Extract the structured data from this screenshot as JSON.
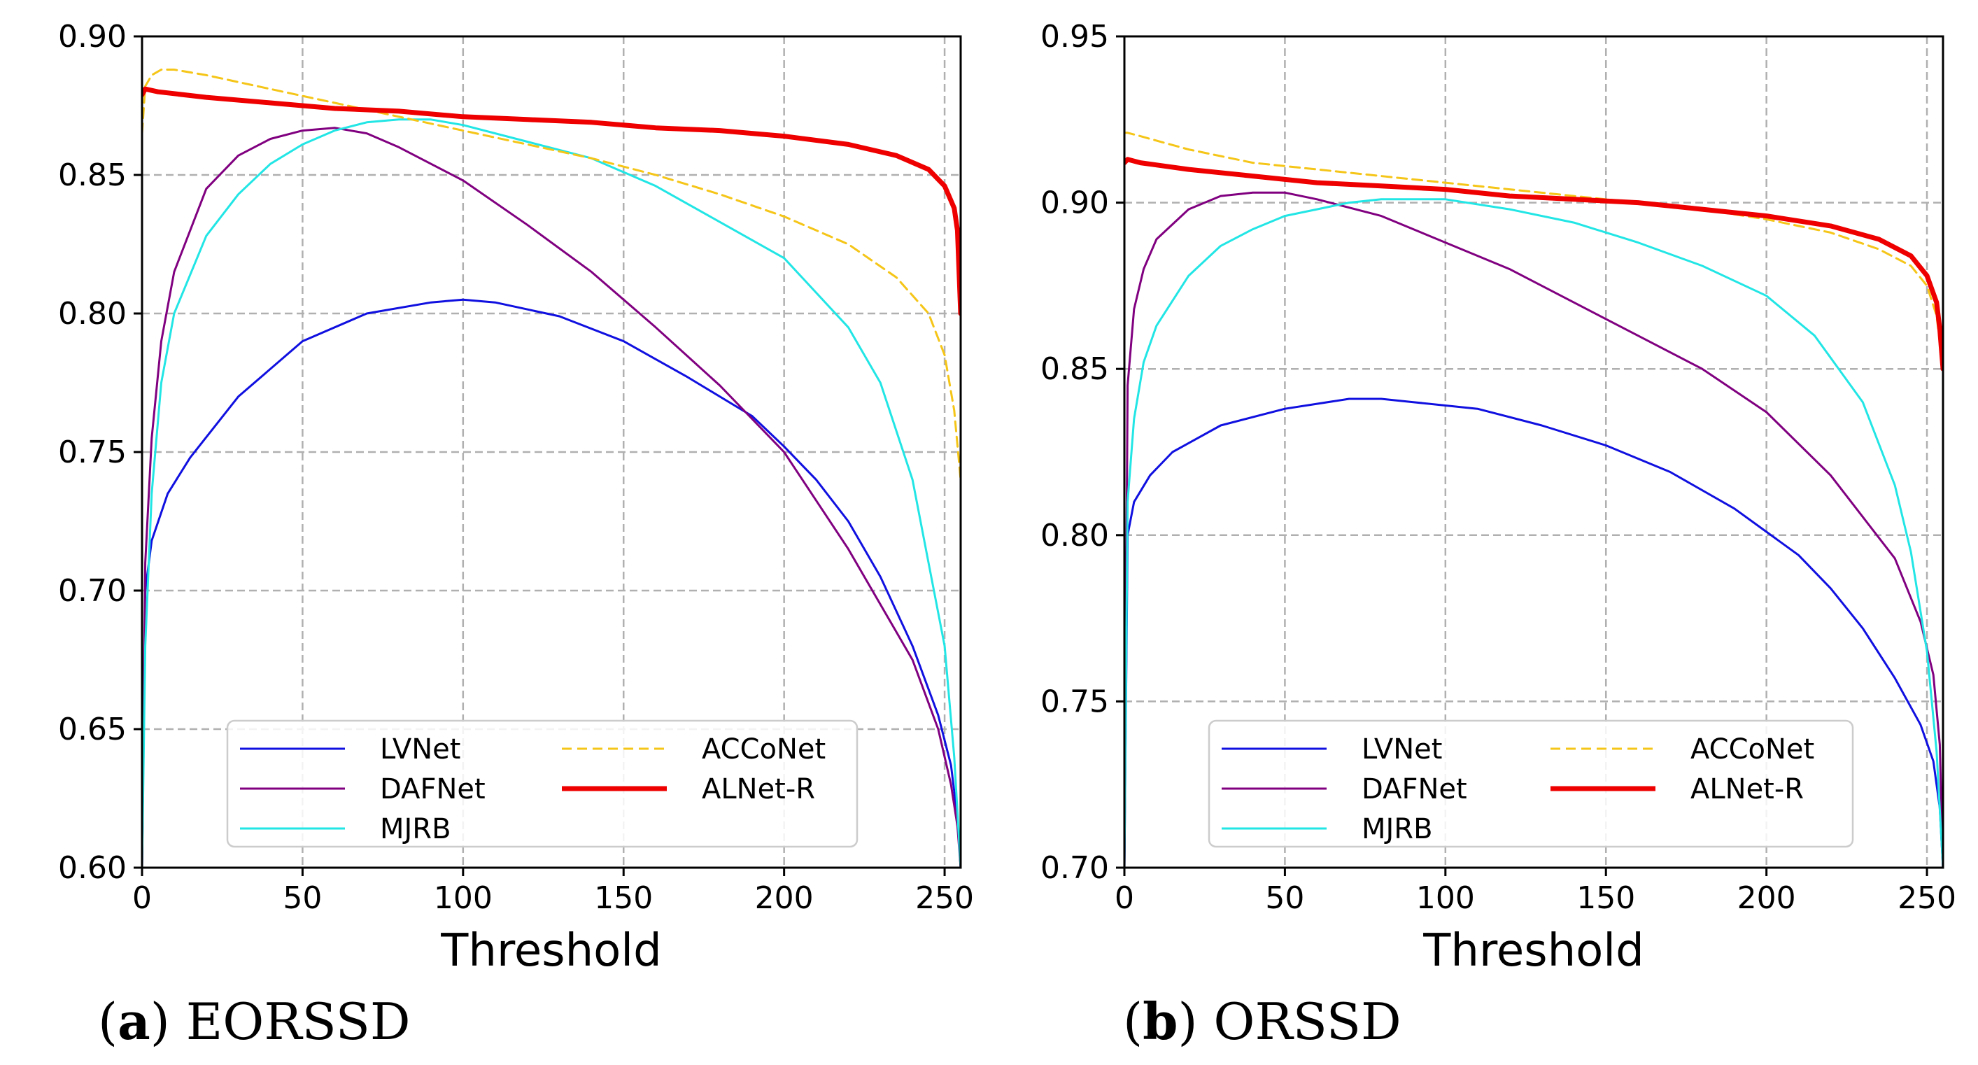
{
  "chart_data": [
    {
      "type": "line",
      "caption_letter": "a",
      "caption_name": "EORSSD",
      "xlabel": "Threshold",
      "ylabel": "",
      "xlim": [
        0,
        255
      ],
      "ylim": [
        0.6,
        0.9
      ],
      "xticks": [
        0,
        50,
        100,
        150,
        200,
        250
      ],
      "yticks": [
        "0.60",
        "0.65",
        "0.70",
        "0.75",
        "0.80",
        "0.85",
        "0.90"
      ],
      "grid": true,
      "legend_position": "lower-center",
      "series": [
        {
          "name": "LVNet",
          "color": "#1010e0",
          "style": "solid",
          "x": [
            0,
            1,
            3,
            8,
            15,
            30,
            50,
            70,
            90,
            100,
            110,
            130,
            150,
            170,
            190,
            200,
            210,
            220,
            230,
            240,
            248,
            252,
            254,
            255
          ],
          "y": [
            0.6,
            0.7,
            0.718,
            0.735,
            0.748,
            0.77,
            0.79,
            0.8,
            0.804,
            0.805,
            0.804,
            0.799,
            0.79,
            0.777,
            0.763,
            0.752,
            0.74,
            0.725,
            0.705,
            0.68,
            0.655,
            0.637,
            0.618,
            0.6
          ]
        },
        {
          "name": "DAFNet",
          "color": "#800080",
          "style": "solid",
          "x": [
            0,
            1,
            3,
            6,
            10,
            20,
            30,
            40,
            50,
            60,
            70,
            80,
            100,
            120,
            140,
            160,
            180,
            200,
            220,
            240,
            248,
            252,
            254,
            255
          ],
          "y": [
            0.6,
            0.71,
            0.755,
            0.79,
            0.815,
            0.845,
            0.857,
            0.863,
            0.866,
            0.867,
            0.865,
            0.86,
            0.848,
            0.832,
            0.815,
            0.795,
            0.774,
            0.75,
            0.715,
            0.675,
            0.65,
            0.63,
            0.615,
            0.6
          ]
        },
        {
          "name": "MJRB",
          "color": "#22e5e5",
          "style": "solid",
          "x": [
            0,
            1,
            3,
            6,
            10,
            20,
            30,
            40,
            50,
            60,
            70,
            80,
            90,
            100,
            120,
            140,
            160,
            180,
            200,
            220,
            230,
            240,
            245,
            250,
            253,
            255
          ],
          "y": [
            0.6,
            0.68,
            0.735,
            0.775,
            0.8,
            0.828,
            0.843,
            0.854,
            0.861,
            0.866,
            0.869,
            0.87,
            0.87,
            0.868,
            0.862,
            0.856,
            0.846,
            0.833,
            0.82,
            0.795,
            0.775,
            0.74,
            0.71,
            0.68,
            0.64,
            0.6
          ]
        },
        {
          "name": "ACCoNet",
          "color": "#f5c518",
          "style": "dashed",
          "x": [
            0,
            1,
            3,
            6,
            10,
            20,
            40,
            60,
            80,
            100,
            120,
            140,
            160,
            180,
            200,
            220,
            235,
            245,
            250,
            253,
            255
          ],
          "y": [
            0.865,
            0.882,
            0.886,
            0.888,
            0.888,
            0.886,
            0.881,
            0.876,
            0.871,
            0.866,
            0.861,
            0.856,
            0.85,
            0.843,
            0.835,
            0.825,
            0.813,
            0.8,
            0.785,
            0.765,
            0.74
          ]
        },
        {
          "name": "ALNet-R",
          "color": "#ee0000",
          "style": "thick",
          "x": [
            0,
            1,
            5,
            20,
            40,
            60,
            80,
            100,
            120,
            140,
            160,
            180,
            200,
            220,
            235,
            245,
            250,
            253,
            254,
            255
          ],
          "y": [
            0.879,
            0.881,
            0.88,
            0.878,
            0.876,
            0.874,
            0.873,
            0.871,
            0.87,
            0.869,
            0.867,
            0.866,
            0.864,
            0.861,
            0.857,
            0.852,
            0.846,
            0.838,
            0.83,
            0.8
          ]
        }
      ]
    },
    {
      "type": "line",
      "caption_letter": "b",
      "caption_name": "ORSSD",
      "xlabel": "Threshold",
      "ylabel": "",
      "xlim": [
        0,
        255
      ],
      "ylim": [
        0.7,
        0.95
      ],
      "xticks": [
        0,
        50,
        100,
        150,
        200,
        250
      ],
      "yticks": [
        "0.70",
        "0.75",
        "0.80",
        "0.85",
        "0.90",
        "0.95"
      ],
      "grid": true,
      "legend_position": "lower-center",
      "series": [
        {
          "name": "LVNet",
          "color": "#1010e0",
          "style": "solid",
          "x": [
            0,
            1,
            3,
            8,
            15,
            30,
            50,
            70,
            80,
            90,
            110,
            130,
            150,
            170,
            190,
            200,
            210,
            220,
            230,
            240,
            248,
            252,
            254,
            255
          ],
          "y": [
            0.7,
            0.8,
            0.81,
            0.818,
            0.825,
            0.833,
            0.838,
            0.841,
            0.841,
            0.84,
            0.838,
            0.833,
            0.827,
            0.819,
            0.808,
            0.801,
            0.794,
            0.784,
            0.772,
            0.757,
            0.743,
            0.732,
            0.718,
            0.7
          ]
        },
        {
          "name": "DAFNet",
          "color": "#800080",
          "style": "solid",
          "x": [
            0,
            1,
            3,
            6,
            10,
            20,
            30,
            40,
            50,
            60,
            80,
            100,
            120,
            140,
            160,
            180,
            200,
            220,
            240,
            248,
            252,
            254,
            255
          ],
          "y": [
            0.7,
            0.845,
            0.868,
            0.88,
            0.889,
            0.898,
            0.902,
            0.903,
            0.903,
            0.901,
            0.896,
            0.888,
            0.88,
            0.87,
            0.86,
            0.85,
            0.837,
            0.818,
            0.793,
            0.774,
            0.758,
            0.737,
            0.7
          ]
        },
        {
          "name": "MJRB",
          "color": "#22e5e5",
          "style": "solid",
          "x": [
            0,
            1,
            3,
            6,
            10,
            20,
            30,
            40,
            50,
            60,
            70,
            80,
            90,
            100,
            120,
            140,
            160,
            180,
            200,
            215,
            230,
            240,
            245,
            250,
            253,
            255
          ],
          "y": [
            0.7,
            0.81,
            0.835,
            0.852,
            0.863,
            0.878,
            0.887,
            0.892,
            0.896,
            0.898,
            0.9,
            0.901,
            0.901,
            0.901,
            0.898,
            0.894,
            0.888,
            0.881,
            0.872,
            0.86,
            0.84,
            0.815,
            0.795,
            0.765,
            0.735,
            0.7
          ]
        },
        {
          "name": "ACCoNet",
          "color": "#f5c518",
          "style": "dashed",
          "x": [
            0,
            1,
            5,
            20,
            40,
            60,
            80,
            100,
            120,
            140,
            160,
            180,
            200,
            220,
            235,
            245,
            250,
            253,
            255
          ],
          "y": [
            0.921,
            0.921,
            0.92,
            0.916,
            0.912,
            0.91,
            0.908,
            0.906,
            0.904,
            0.902,
            0.9,
            0.898,
            0.895,
            0.891,
            0.886,
            0.881,
            0.875,
            0.866,
            0.85
          ]
        },
        {
          "name": "ALNet-R",
          "color": "#ee0000",
          "style": "thick",
          "x": [
            0,
            1,
            5,
            20,
            40,
            60,
            80,
            100,
            120,
            140,
            160,
            180,
            200,
            220,
            235,
            245,
            250,
            253,
            254,
            255
          ],
          "y": [
            0.912,
            0.913,
            0.912,
            0.91,
            0.908,
            0.906,
            0.905,
            0.904,
            0.902,
            0.901,
            0.9,
            0.898,
            0.896,
            0.893,
            0.889,
            0.884,
            0.878,
            0.87,
            0.862,
            0.85
          ]
        }
      ]
    }
  ]
}
